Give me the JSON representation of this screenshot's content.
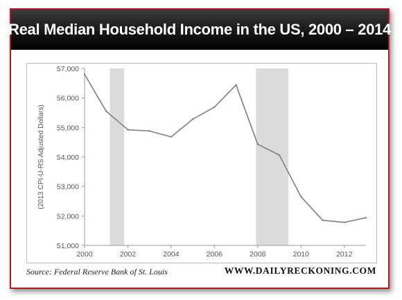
{
  "chart_data": {
    "type": "line",
    "title": "Real Median Household Income in the US, 2000 – 2014",
    "ylabel": "(2013 CPI-U-RS Adjusted Dollars)",
    "xlabel": "",
    "xlim": [
      2000,
      2013
    ],
    "ylim": [
      51000,
      57000
    ],
    "x_ticks": [
      2000,
      2002,
      2004,
      2006,
      2008,
      2010,
      2012
    ],
    "y_ticks": [
      51000,
      52000,
      53000,
      54000,
      55000,
      56000,
      57000
    ],
    "x_tick_labels": [
      "2000",
      "2002",
      "2004",
      "2006",
      "2008",
      "2010",
      "2012"
    ],
    "y_tick_labels": [
      "51,000",
      "52,000",
      "53,000",
      "54,000",
      "55,000",
      "56,000",
      "57,000"
    ],
    "recessions": [
      [
        2001.17,
        2001.83
      ],
      [
        2007.92,
        2009.42
      ]
    ],
    "x": [
      2000,
      2001,
      2002,
      2003,
      2004,
      2005,
      2006,
      2007,
      2008,
      2009,
      2010,
      2011,
      2012,
      2013
    ],
    "y": [
      56800,
      55550,
      54920,
      54880,
      54680,
      55280,
      55690,
      56440,
      54430,
      54060,
      52650,
      51850,
      51780,
      51940
    ],
    "grid": false,
    "line_color": "#7f7f7f",
    "recession_color": "#dcdcdc"
  },
  "footer": {
    "source": "Source: Federal Reserve Bank of St. Louis",
    "brand": "WWW.DAILYRECKONING.COM"
  },
  "colors": {
    "accent": "#b3171c",
    "header_bg": "#000000"
  }
}
